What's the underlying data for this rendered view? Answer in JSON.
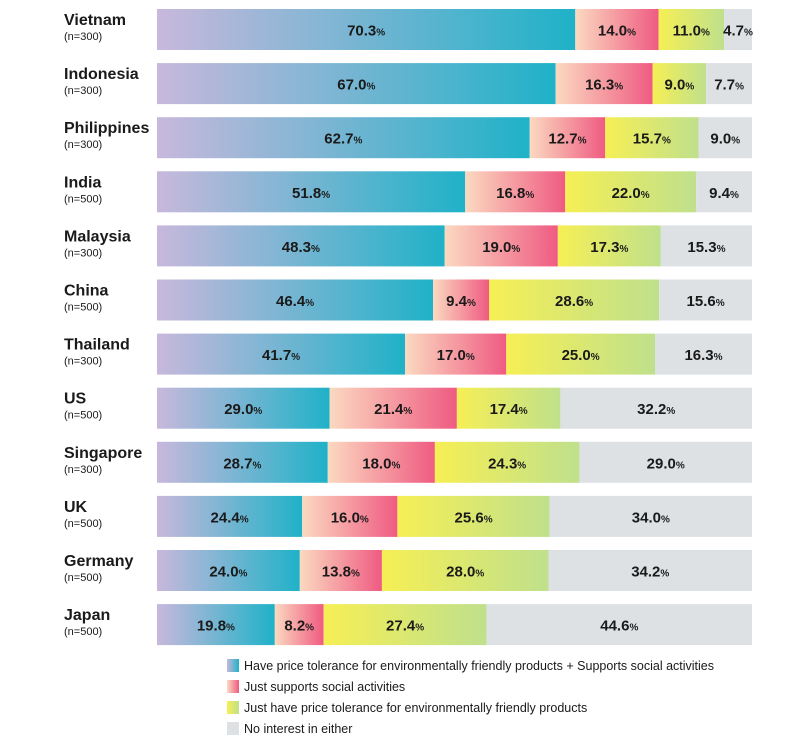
{
  "chart_data": {
    "type": "bar",
    "orientation": "horizontal",
    "stacked": true,
    "normalized": true,
    "categories": [
      "Vietnam",
      "Indonesia",
      "Philippines",
      "India",
      "Malaysia",
      "China",
      "Thailand",
      "US",
      "Singapore",
      "UK",
      "Germany",
      "Japan"
    ],
    "sample_sizes": [
      "(n=300)",
      "(n=300)",
      "(n=300)",
      "(n=500)",
      "(n=300)",
      "(n=500)",
      "(n=300)",
      "(n=500)",
      "(n=300)",
      "(n=500)",
      "(n=500)",
      "(n=500)"
    ],
    "unit": "%",
    "series": [
      {
        "name": "Have price tolerance for environmentally friendly products + Supports social activities",
        "color_start": "#c8b8dc",
        "color_end": "#1fb2c8",
        "values": [
          70.3,
          67.0,
          62.7,
          51.8,
          48.3,
          46.4,
          41.7,
          29.0,
          28.7,
          24.4,
          24.0,
          19.8
        ]
      },
      {
        "name": "Just supports social activities",
        "color_start": "#fbd9c0",
        "color_end": "#ef5b82",
        "values": [
          14.0,
          16.3,
          12.7,
          16.8,
          19.0,
          9.4,
          17.0,
          21.4,
          18.0,
          16.0,
          13.8,
          8.2
        ]
      },
      {
        "name": "Just have price tolerance for environmentally friendly products",
        "color_start": "#f6ef55",
        "color_end": "#bfe08c",
        "values": [
          11.0,
          9.0,
          15.7,
          22.0,
          17.3,
          28.6,
          25.0,
          17.4,
          24.3,
          25.6,
          28.0,
          27.4
        ]
      },
      {
        "name": "No interest in either",
        "color_start": "#dde1e4",
        "color_end": "#dde1e4",
        "values": [
          4.7,
          7.7,
          9.0,
          9.4,
          15.3,
          15.6,
          16.3,
          32.2,
          29.0,
          34.0,
          34.2,
          44.6
        ]
      }
    ],
    "xlim": [
      0,
      100
    ],
    "grid": false,
    "legend_position": "bottom"
  }
}
